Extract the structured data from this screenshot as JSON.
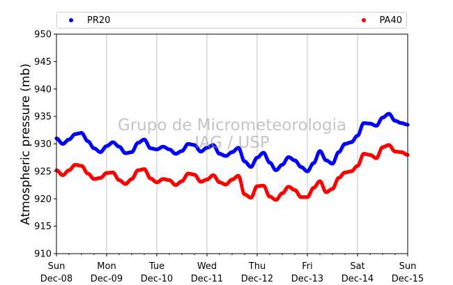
{
  "chart_data": {
    "type": "scatter",
    "xlabel": "",
    "ylabel": "Atmospheric pressure (mb)",
    "ylim": [
      910,
      950
    ],
    "yticks": [
      910,
      915,
      920,
      925,
      930,
      935,
      940,
      945,
      950
    ],
    "x_range": [
      "2014-12-08 00:00",
      "2014-12-15 00:00"
    ],
    "x_ticks": [
      {
        "day": "Sun",
        "date": "Dec-08"
      },
      {
        "day": "Mon",
        "date": "Dec-09"
      },
      {
        "day": "Tue",
        "date": "Dec-10"
      },
      {
        "day": "Wed",
        "date": "Dec-11"
      },
      {
        "day": "Thu",
        "date": "Dec-12"
      },
      {
        "day": "Fri",
        "date": "Dec-13"
      },
      {
        "day": "Sat",
        "date": "Dec-14"
      },
      {
        "day": "Sun",
        "date": "Dec-15"
      }
    ],
    "grid": "vertical",
    "legend_position": "top",
    "series": [
      {
        "name": "PR20",
        "color": "#0000ff",
        "points": [
          [
            "Dec-08 00:00",
            931.0
          ],
          [
            "Dec-08 03:00",
            930.0
          ],
          [
            "Dec-08 06:00",
            930.8
          ],
          [
            "Dec-08 09:00",
            931.8
          ],
          [
            "Dec-08 12:00",
            932.0
          ],
          [
            "Dec-08 15:00",
            930.5
          ],
          [
            "Dec-08 18:00",
            929.2
          ],
          [
            "Dec-08 21:00",
            928.5
          ],
          [
            "Dec-09 00:00",
            929.6
          ],
          [
            "Dec-09 03:00",
            930.3
          ],
          [
            "Dec-09 06:00",
            929.5
          ],
          [
            "Dec-09 09:00",
            928.3
          ],
          [
            "Dec-09 12:00",
            928.5
          ],
          [
            "Dec-09 15:00",
            930.2
          ],
          [
            "Dec-09 18:00",
            930.8
          ],
          [
            "Dec-09 21:00",
            929.2
          ],
          [
            "Dec-10 00:00",
            929.0
          ],
          [
            "Dec-10 03:00",
            929.5
          ],
          [
            "Dec-10 06:00",
            929.0
          ],
          [
            "Dec-10 09:00",
            928.2
          ],
          [
            "Dec-10 12:00",
            928.7
          ],
          [
            "Dec-10 15:00",
            930.0
          ],
          [
            "Dec-10 18:00",
            929.8
          ],
          [
            "Dec-10 21:00",
            928.6
          ],
          [
            "Dec-11 00:00",
            929.3
          ],
          [
            "Dec-11 03:00",
            929.8
          ],
          [
            "Dec-11 06:00",
            928.2
          ],
          [
            "Dec-11 09:00",
            927.8
          ],
          [
            "Dec-11 12:00",
            928.5
          ],
          [
            "Dec-11 15:00",
            929.3
          ],
          [
            "Dec-11 18:00",
            926.8
          ],
          [
            "Dec-11 21:00",
            925.8
          ],
          [
            "Dec-12 00:00",
            927.5
          ],
          [
            "Dec-12 03:00",
            928.4
          ],
          [
            "Dec-12 06:00",
            926.6
          ],
          [
            "Dec-12 09:00",
            925.2
          ],
          [
            "Dec-12 12:00",
            926.2
          ],
          [
            "Dec-12 15:00",
            927.6
          ],
          [
            "Dec-12 18:00",
            927.0
          ],
          [
            "Dec-12 21:00",
            925.8
          ],
          [
            "Dec-13 00:00",
            925.0
          ],
          [
            "Dec-13 03:00",
            926.5
          ],
          [
            "Dec-13 06:00",
            928.7
          ],
          [
            "Dec-13 09:00",
            927.0
          ],
          [
            "Dec-13 12:00",
            926.4
          ],
          [
            "Dec-13 15:00",
            928.5
          ],
          [
            "Dec-13 18:00",
            930.0
          ],
          [
            "Dec-13 21:00",
            930.3
          ],
          [
            "Dec-14 00:00",
            931.5
          ],
          [
            "Dec-14 03:00",
            933.8
          ],
          [
            "Dec-14 06:00",
            933.7
          ],
          [
            "Dec-14 09:00",
            933.3
          ],
          [
            "Dec-14 12:00",
            934.8
          ],
          [
            "Dec-14 15:00",
            935.5
          ],
          [
            "Dec-14 18:00",
            934.2
          ],
          [
            "Dec-14 21:00",
            933.8
          ],
          [
            "Dec-15 00:00",
            933.5
          ]
        ]
      },
      {
        "name": "PA40",
        "color": "#ff0000",
        "points": [
          [
            "Dec-08 00:00",
            925.2
          ],
          [
            "Dec-08 03:00",
            924.3
          ],
          [
            "Dec-08 06:00",
            925.2
          ],
          [
            "Dec-08 09:00",
            926.2
          ],
          [
            "Dec-08 12:00",
            926.0
          ],
          [
            "Dec-08 15:00",
            924.6
          ],
          [
            "Dec-08 18:00",
            923.6
          ],
          [
            "Dec-08 21:00",
            923.8
          ],
          [
            "Dec-09 00:00",
            924.7
          ],
          [
            "Dec-09 03:00",
            924.8
          ],
          [
            "Dec-09 06:00",
            923.4
          ],
          [
            "Dec-09 09:00",
            922.7
          ],
          [
            "Dec-09 12:00",
            923.6
          ],
          [
            "Dec-09 15:00",
            925.2
          ],
          [
            "Dec-09 18:00",
            925.4
          ],
          [
            "Dec-09 21:00",
            923.7
          ],
          [
            "Dec-10 00:00",
            923.0
          ],
          [
            "Dec-10 03:00",
            923.6
          ],
          [
            "Dec-10 06:00",
            923.4
          ],
          [
            "Dec-10 09:00",
            922.5
          ],
          [
            "Dec-10 12:00",
            923.2
          ],
          [
            "Dec-10 15:00",
            924.6
          ],
          [
            "Dec-10 18:00",
            924.4
          ],
          [
            "Dec-10 21:00",
            923.1
          ],
          [
            "Dec-11 00:00",
            923.5
          ],
          [
            "Dec-11 03:00",
            924.3
          ],
          [
            "Dec-11 06:00",
            923.0
          ],
          [
            "Dec-11 09:00",
            922.6
          ],
          [
            "Dec-11 12:00",
            923.5
          ],
          [
            "Dec-11 15:00",
            924.2
          ],
          [
            "Dec-11 18:00",
            920.8
          ],
          [
            "Dec-11 21:00",
            920.2
          ],
          [
            "Dec-12 00:00",
            922.3
          ],
          [
            "Dec-12 03:00",
            922.4
          ],
          [
            "Dec-12 06:00",
            920.4
          ],
          [
            "Dec-12 09:00",
            919.8
          ],
          [
            "Dec-12 12:00",
            921.0
          ],
          [
            "Dec-12 15:00",
            922.2
          ],
          [
            "Dec-12 18:00",
            921.6
          ],
          [
            "Dec-12 21:00",
            920.3
          ],
          [
            "Dec-13 00:00",
            920.3
          ],
          [
            "Dec-13 03:00",
            922.0
          ],
          [
            "Dec-13 06:00",
            923.2
          ],
          [
            "Dec-13 09:00",
            921.2
          ],
          [
            "Dec-13 12:00",
            921.8
          ],
          [
            "Dec-13 15:00",
            923.8
          ],
          [
            "Dec-13 18:00",
            924.8
          ],
          [
            "Dec-13 21:00",
            925.0
          ],
          [
            "Dec-14 00:00",
            926.0
          ],
          [
            "Dec-14 03:00",
            928.2
          ],
          [
            "Dec-14 06:00",
            928.0
          ],
          [
            "Dec-14 09:00",
            927.4
          ],
          [
            "Dec-14 12:00",
            929.4
          ],
          [
            "Dec-14 15:00",
            929.8
          ],
          [
            "Dec-14 18:00",
            928.6
          ],
          [
            "Dec-14 21:00",
            928.5
          ],
          [
            "Dec-15 00:00",
            928.0
          ]
        ]
      }
    ]
  },
  "watermark": {
    "line1": "Grupo de Micrometeorologia",
    "line2": "IAG / USP"
  }
}
